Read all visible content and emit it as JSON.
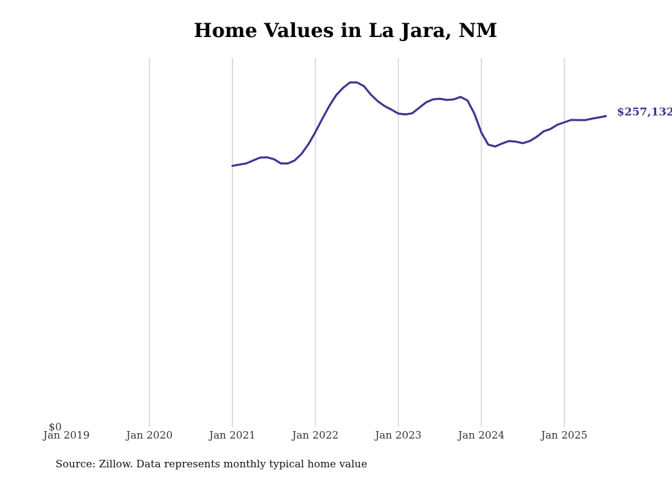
{
  "chart_data": {
    "type": "line",
    "title": "Home Values in La Jara, NM",
    "source": "Source: Zillow. Data represents monthly typical home value",
    "xlabel": "",
    "ylabel": "",
    "x_ticks": [
      "Jan 2019",
      "Jan 2020",
      "Jan 2021",
      "Jan 2022",
      "Jan 2023",
      "Jan 2024",
      "Jan 2025"
    ],
    "y_ticks": [
      "$0"
    ],
    "ylim": [
      0,
      305000
    ],
    "grid": "vertical",
    "legend": "none",
    "line_color": "#3d3590",
    "end_label": "$257,132",
    "series": [
      {
        "values": [
          [
            "2021-01",
            216000
          ],
          [
            "2021-02",
            217000
          ],
          [
            "2021-03",
            218000
          ],
          [
            "2021-04",
            220500
          ],
          [
            "2021-05",
            222800
          ],
          [
            "2021-06",
            223000
          ],
          [
            "2021-07",
            221500
          ],
          [
            "2021-08",
            218000
          ],
          [
            "2021-09",
            218000
          ],
          [
            "2021-10",
            220500
          ],
          [
            "2021-11",
            226000
          ],
          [
            "2021-12",
            234000
          ],
          [
            "2022-01",
            244000
          ],
          [
            "2022-02",
            255000
          ],
          [
            "2022-03",
            265500
          ],
          [
            "2022-04",
            274500
          ],
          [
            "2022-05",
            280500
          ],
          [
            "2022-06",
            285000
          ],
          [
            "2022-07",
            285000
          ],
          [
            "2022-08",
            282000
          ],
          [
            "2022-09",
            275000
          ],
          [
            "2022-10",
            269500
          ],
          [
            "2022-11",
            265500
          ],
          [
            "2022-12",
            262500
          ],
          [
            "2023-01",
            259200
          ],
          [
            "2023-02",
            258500
          ],
          [
            "2023-03",
            259500
          ],
          [
            "2023-04",
            264000
          ],
          [
            "2023-05",
            268500
          ],
          [
            "2023-06",
            271000
          ],
          [
            "2023-07",
            271500
          ],
          [
            "2023-08",
            270500
          ],
          [
            "2023-09",
            271000
          ],
          [
            "2023-10",
            273000
          ],
          [
            "2023-11",
            270000
          ],
          [
            "2023-12",
            259000
          ],
          [
            "2024-01",
            243500
          ],
          [
            "2024-02",
            233500
          ],
          [
            "2024-03",
            232000
          ],
          [
            "2024-04",
            234500
          ],
          [
            "2024-05",
            236500
          ],
          [
            "2024-06",
            236000
          ],
          [
            "2024-07",
            234700
          ],
          [
            "2024-08",
            236500
          ],
          [
            "2024-09",
            240000
          ],
          [
            "2024-10",
            244500
          ],
          [
            "2024-11",
            246500
          ],
          [
            "2024-12",
            250000
          ],
          [
            "2025-01",
            252000
          ],
          [
            "2025-02",
            254000
          ],
          [
            "2025-03",
            253800
          ],
          [
            "2025-04",
            253800
          ],
          [
            "2025-05",
            255000
          ],
          [
            "2025-06",
            256000
          ],
          [
            "2025-07",
            257132
          ]
        ]
      }
    ]
  }
}
